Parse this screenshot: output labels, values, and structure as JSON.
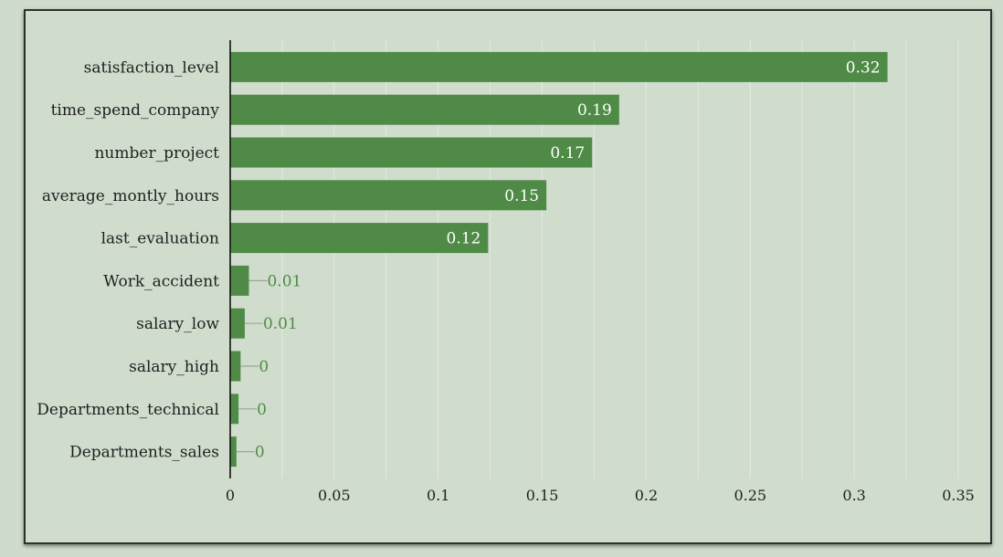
{
  "chart_data": {
    "type": "bar",
    "orientation": "horizontal",
    "title": "",
    "xlabel": "",
    "ylabel": "",
    "categories": [
      "satisfaction_level",
      "time_spend_company",
      "number_project",
      "average_montly_hours",
      "last_evaluation",
      "Work_accident",
      "salary_low",
      "salary_high",
      "Departments_technical",
      "Departments_sales"
    ],
    "values": [
      0.316,
      0.187,
      0.174,
      0.152,
      0.124,
      0.009,
      0.007,
      0.005,
      0.004,
      0.003
    ],
    "value_labels": [
      "0.32",
      "0.19",
      "0.17",
      "0.15",
      "0.12",
      "0.01",
      "0.01",
      "0",
      "0",
      "0"
    ],
    "xlim": [
      0,
      0.35
    ],
    "xticks": [
      0,
      0.05,
      0.1,
      0.15,
      0.2,
      0.25,
      0.3,
      0.35
    ],
    "xtick_labels": [
      "0",
      "0.05",
      "0.1",
      "0.15",
      "0.2",
      "0.25",
      "0.3",
      "0.35"
    ],
    "grid": "vertical",
    "legend": "none",
    "colors": {
      "bar": "#4f8b46",
      "background": "#d0ddcd",
      "grid": "#e4e8e2",
      "label_inside": "#ffffff",
      "label_outside": "#4f8b46",
      "leader_line": "#9aa59a"
    }
  }
}
